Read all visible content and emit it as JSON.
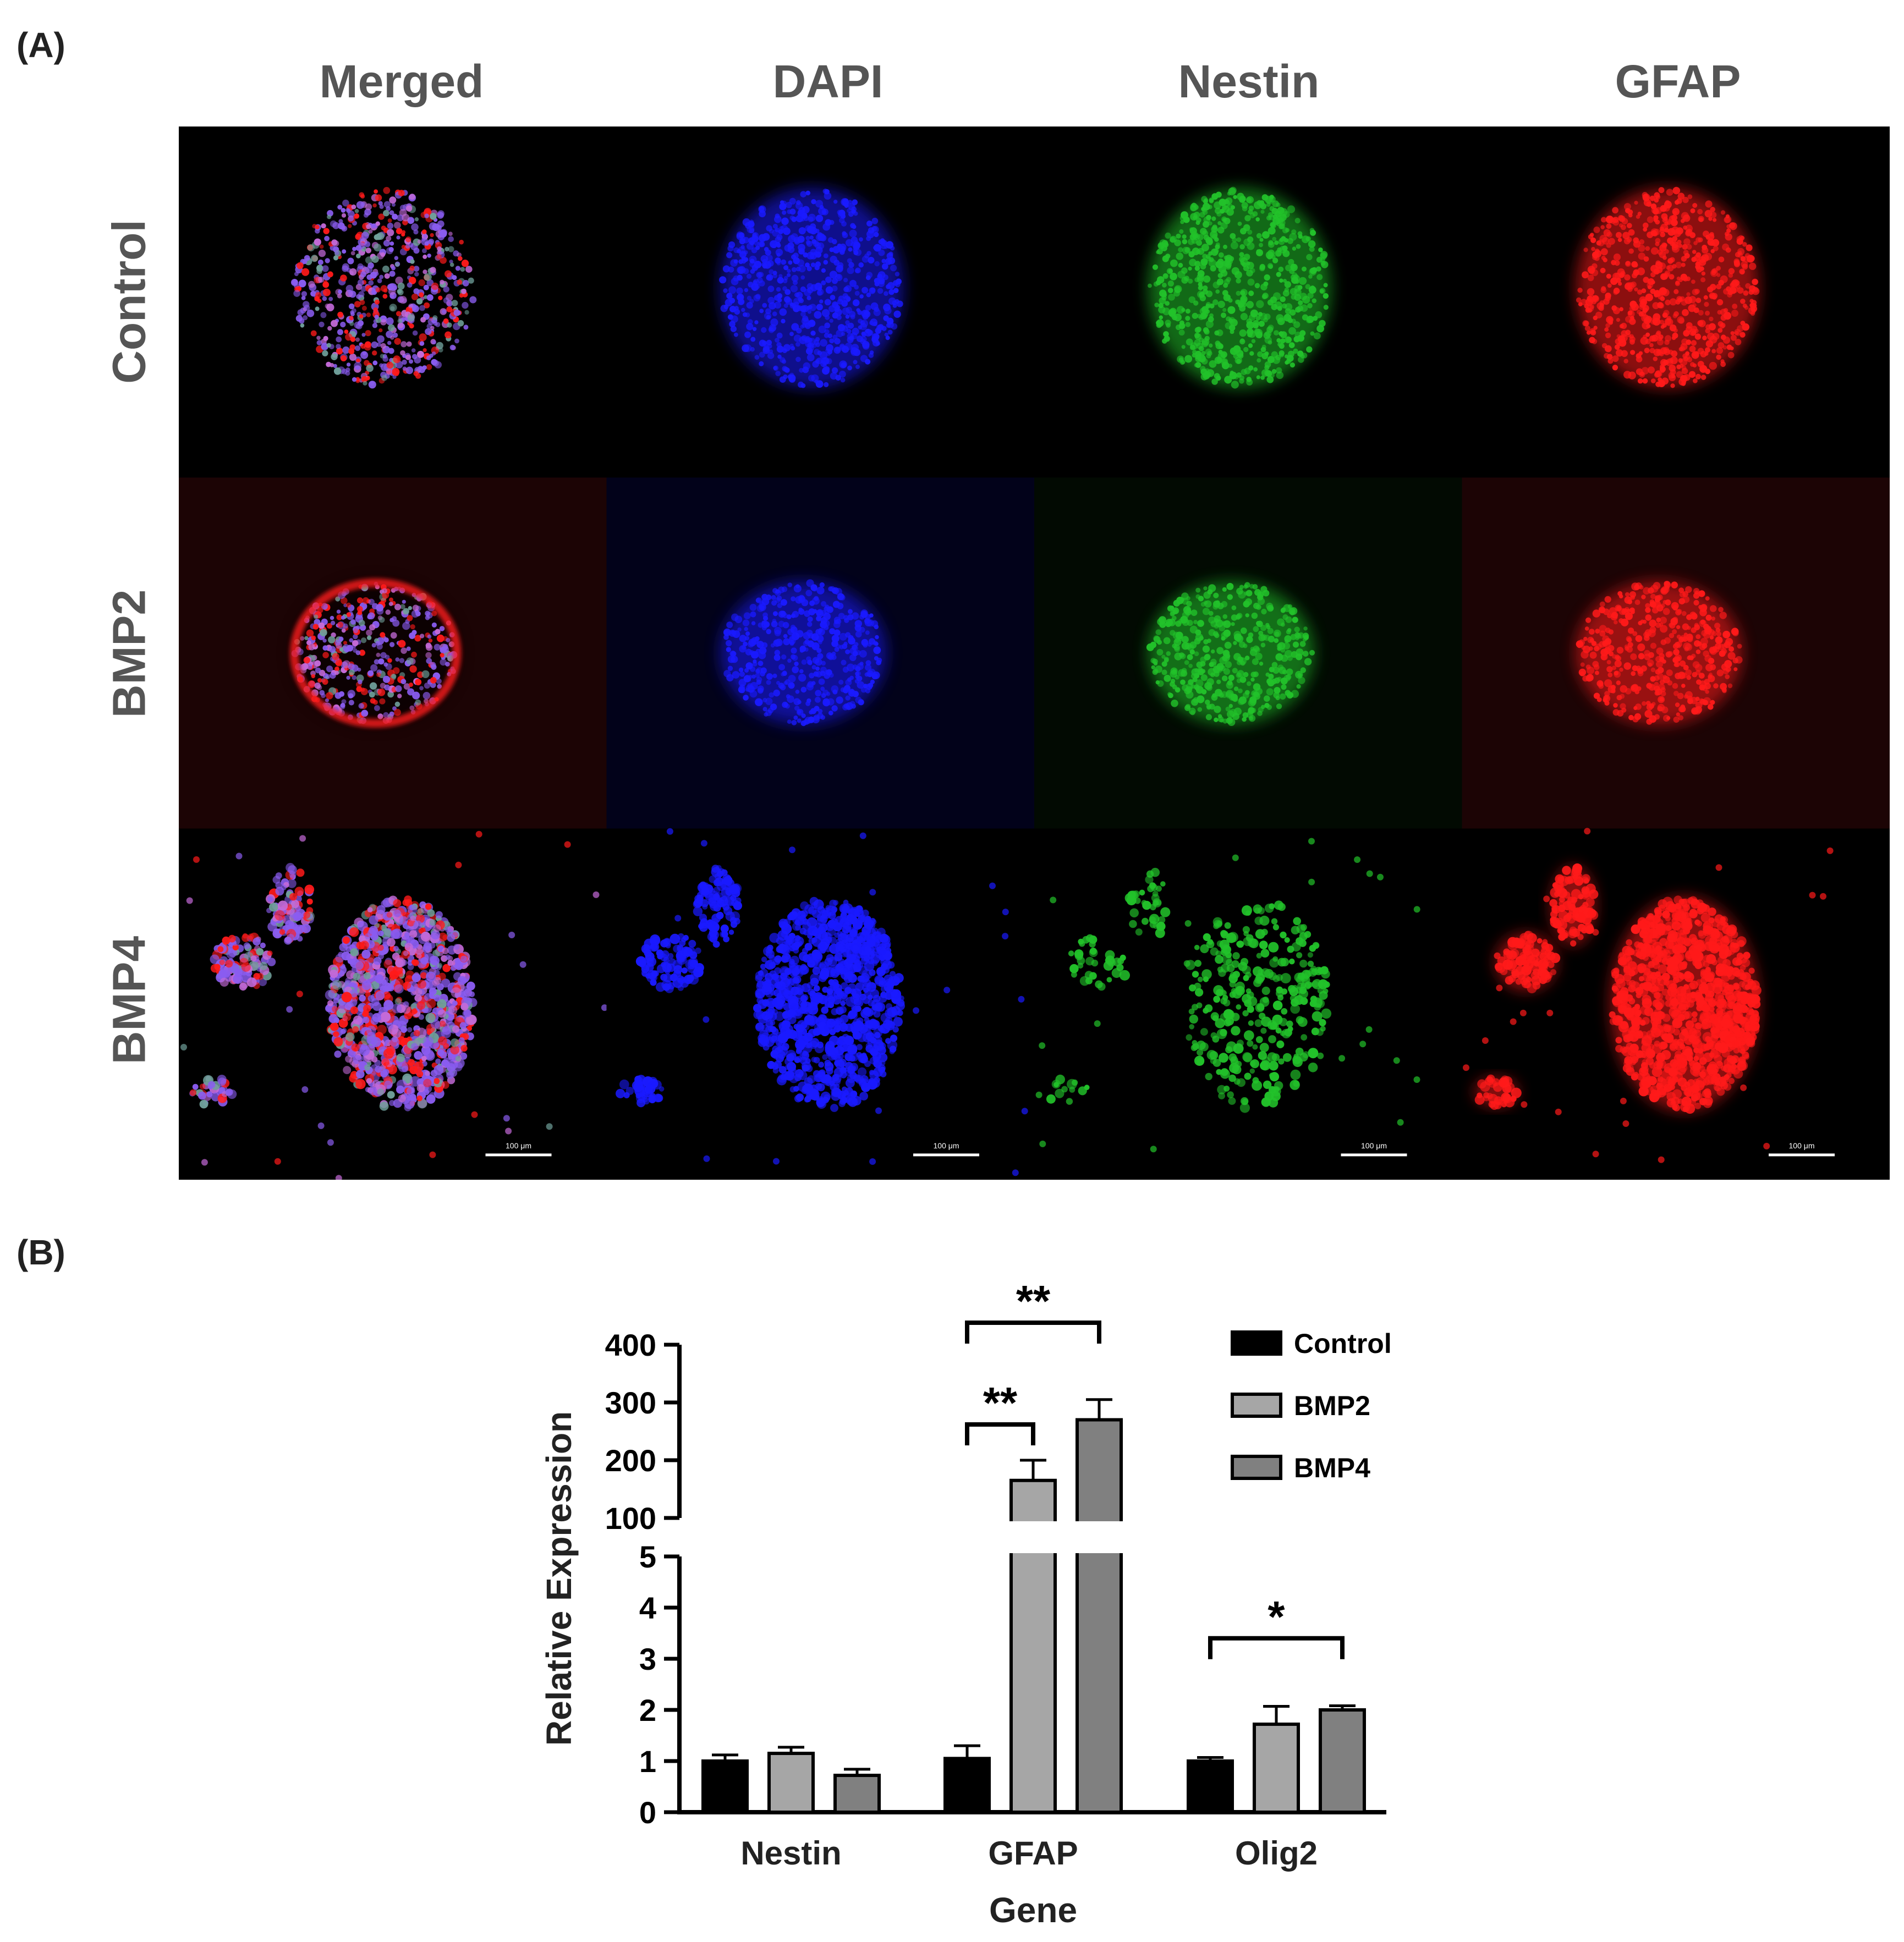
{
  "panel_a": {
    "label": "(A)",
    "columns": [
      "Merged",
      "DAPI",
      "Nestin",
      "GFAP"
    ],
    "rows": [
      "Control",
      "BMP2",
      "BMP4"
    ],
    "scale_bar_label": "100 μm",
    "channel_colors": {
      "dapi": "#1a1aff",
      "nestin": "#22c22a",
      "gfap": "#ff1a1a"
    }
  },
  "panel_b": {
    "label": "(B)"
  },
  "chart_data": {
    "type": "bar",
    "xlabel": "Gene",
    "ylabel": "Relative Expression",
    "categories": [
      "Nestin",
      "GFAP",
      "Olig2"
    ],
    "series": [
      {
        "name": "Control",
        "color": "#000000",
        "values": [
          1.0,
          1.05,
          1.0
        ],
        "errors": [
          0.12,
          0.25,
          0.07
        ]
      },
      {
        "name": "BMP2",
        "color": "#a6a6a6",
        "values": [
          1.15,
          165,
          1.72
        ],
        "errors": [
          0.12,
          35,
          0.35
        ]
      },
      {
        "name": "BMP4",
        "color": "#808080",
        "values": [
          0.72,
          270,
          2.0
        ],
        "errors": [
          0.12,
          35,
          0.08
        ]
      }
    ],
    "y_axis_broken": true,
    "lower_segment": {
      "range": [
        0,
        5
      ],
      "ticks": [
        0,
        1,
        2,
        3,
        4,
        5
      ]
    },
    "upper_segment": {
      "range": [
        100,
        400
      ],
      "ticks": [
        100,
        200,
        300,
        400
      ]
    },
    "legend_position": "top-right",
    "significance": [
      {
        "category": "GFAP",
        "from": "Control",
        "to": "BMP2",
        "label": "**"
      },
      {
        "category": "GFAP",
        "from": "Control",
        "to": "BMP4",
        "label": "**"
      },
      {
        "category": "Olig2",
        "from": "Control",
        "to": "BMP4",
        "label": "*"
      }
    ]
  }
}
